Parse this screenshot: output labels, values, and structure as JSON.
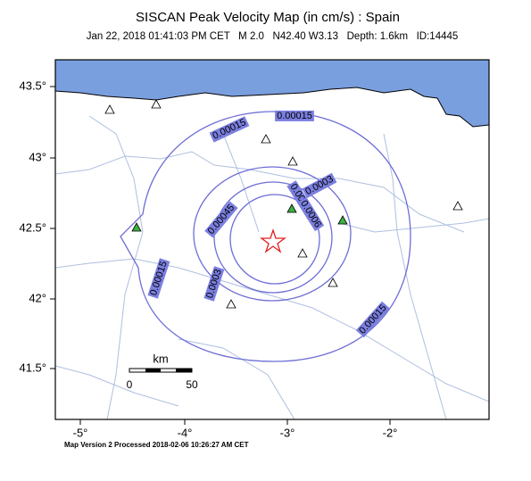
{
  "header": {
    "title": "SISCAN Peak Velocity Map (in cm/s) : Spain",
    "subtitle": "Jan 22, 2018 01:41:03 PM CET   M 2.0   N42.40 W3.13   Depth: 1.6km   ID:14445"
  },
  "axes": {
    "x_labels": [
      "-5°",
      "-4°",
      "-3°",
      "-2°"
    ],
    "y_labels": [
      "43.5°",
      "43°",
      "42.5°",
      "42°",
      "41.5°"
    ]
  },
  "contour_labels": [
    "0.00015",
    "0.00015",
    "0.0003",
    "0.00045",
    "0.0006",
    "0.00045",
    "0.0003",
    "0.00015",
    "0.00015"
  ],
  "scale_bar": {
    "unit": "km",
    "labels": [
      "0",
      "50"
    ]
  },
  "footer": "Map Version 2 Processed 2018-02-06 10:26:27 AM CET"
}
